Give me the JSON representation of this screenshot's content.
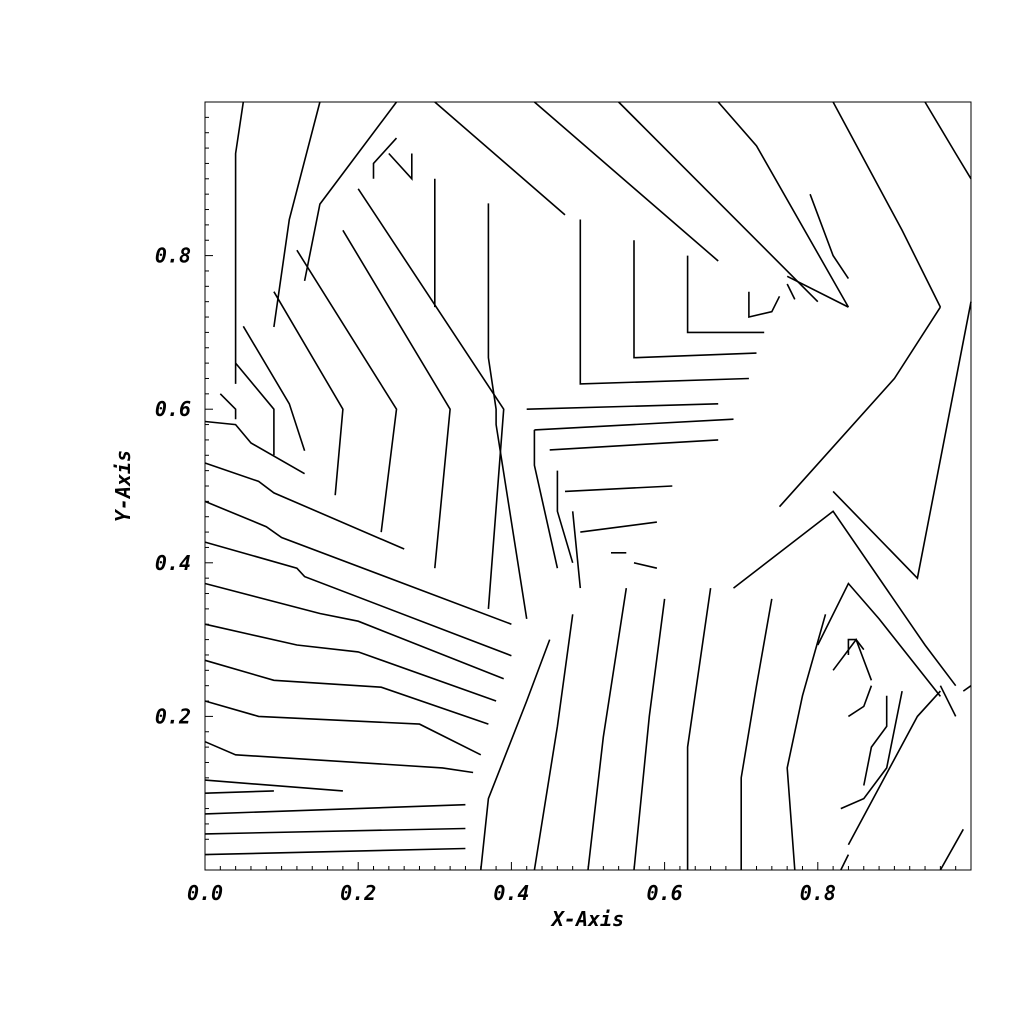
{
  "chart_data": {
    "type": "contour",
    "title": "",
    "xlabel": "X-Axis",
    "ylabel": "Y-Axis",
    "xlim": [
      0.0,
      1.0
    ],
    "ylim": [
      0.0,
      1.0
    ],
    "grid": false,
    "line_color": "#000000",
    "x_ticks": [
      {
        "value": 0.0,
        "label": "0.0"
      },
      {
        "value": 0.2,
        "label": "0.2"
      },
      {
        "value": 0.4,
        "label": "0.4"
      },
      {
        "value": 0.6,
        "label": "0.6"
      },
      {
        "value": 0.8,
        "label": "0.8"
      }
    ],
    "y_ticks": [
      {
        "value": 0.2,
        "label": "0.2"
      },
      {
        "value": 0.4,
        "label": "0.4"
      },
      {
        "value": 0.6,
        "label": "0.6"
      },
      {
        "value": 0.8,
        "label": "0.8"
      }
    ],
    "minor_tick_step": 0.02,
    "contour_lines": [
      [
        [
          0.0,
          0.02
        ],
        [
          0.34,
          0.028
        ]
      ],
      [
        [
          0.0,
          0.047
        ],
        [
          0.34,
          0.054
        ]
      ],
      [
        [
          0.0,
          0.073
        ],
        [
          0.34,
          0.085
        ]
      ],
      [
        [
          0.0,
          0.1
        ],
        [
          0.09,
          0.103
        ]
      ],
      [
        [
          0.0,
          0.117
        ],
        [
          0.18,
          0.103
        ]
      ],
      [
        [
          0.0,
          0.167
        ],
        [
          0.04,
          0.15
        ],
        [
          0.31,
          0.133
        ],
        [
          0.35,
          0.127
        ]
      ],
      [
        [
          0.0,
          0.22
        ],
        [
          0.07,
          0.2
        ],
        [
          0.28,
          0.19
        ],
        [
          0.36,
          0.15
        ]
      ],
      [
        [
          0.0,
          0.273
        ],
        [
          0.09,
          0.247
        ],
        [
          0.23,
          0.238
        ],
        [
          0.37,
          0.19
        ]
      ],
      [
        [
          0.0,
          0.32
        ],
        [
          0.12,
          0.293
        ],
        [
          0.2,
          0.284
        ],
        [
          0.38,
          0.22
        ]
      ],
      [
        [
          0.0,
          0.373
        ],
        [
          0.15,
          0.334
        ],
        [
          0.2,
          0.324
        ],
        [
          0.39,
          0.249
        ]
      ],
      [
        [
          0.0,
          0.427
        ],
        [
          0.12,
          0.393
        ],
        [
          0.13,
          0.382
        ],
        [
          0.4,
          0.279
        ]
      ],
      [
        [
          0.0,
          0.48
        ],
        [
          0.08,
          0.447
        ],
        [
          0.1,
          0.433
        ],
        [
          0.4,
          0.32
        ]
      ],
      [
        [
          0.0,
          0.53
        ],
        [
          0.07,
          0.506
        ],
        [
          0.09,
          0.491
        ],
        [
          0.26,
          0.418
        ]
      ],
      [
        [
          0.0,
          0.584
        ],
        [
          0.04,
          0.58
        ],
        [
          0.06,
          0.556
        ],
        [
          0.13,
          0.516
        ]
      ],
      [
        [
          0.02,
          0.62
        ],
        [
          0.04,
          0.6
        ],
        [
          0.04,
          0.587
        ]
      ],
      [
        [
          0.04,
          0.66
        ],
        [
          0.09,
          0.6
        ],
        [
          0.09,
          0.54
        ]
      ],
      [
        [
          0.05,
          0.708
        ],
        [
          0.11,
          0.607
        ],
        [
          0.13,
          0.546
        ]
      ],
      [
        [
          0.09,
          0.753
        ],
        [
          0.18,
          0.6
        ],
        [
          0.17,
          0.488
        ]
      ],
      [
        [
          0.12,
          0.807
        ],
        [
          0.25,
          0.6
        ],
        [
          0.23,
          0.44
        ]
      ],
      [
        [
          0.18,
          0.833
        ],
        [
          0.32,
          0.6
        ],
        [
          0.3,
          0.393
        ]
      ],
      [
        [
          0.2,
          0.887
        ],
        [
          0.39,
          0.6
        ],
        [
          0.37,
          0.34
        ]
      ],
      [
        [
          0.22,
          0.9
        ],
        [
          0.22,
          0.92
        ],
        [
          0.25,
          0.953
        ]
      ],
      [
        [
          0.24,
          0.933
        ],
        [
          0.27,
          0.9
        ],
        [
          0.27,
          0.933
        ]
      ],
      [
        [
          0.13,
          0.767
        ],
        [
          0.15,
          0.867
        ],
        [
          0.25,
          1.0
        ]
      ],
      [
        [
          0.09,
          0.707
        ],
        [
          0.11,
          0.847
        ],
        [
          0.15,
          1.0
        ]
      ],
      [
        [
          0.04,
          0.633
        ],
        [
          0.04,
          0.7
        ],
        [
          0.04,
          0.933
        ],
        [
          0.05,
          1.0
        ]
      ],
      [
        [
          0.3,
          0.9
        ],
        [
          0.3,
          0.733
        ]
      ],
      [
        [
          0.37,
          0.868
        ],
        [
          0.37,
          0.667
        ],
        [
          0.38,
          0.6
        ],
        [
          0.38,
          0.58
        ],
        [
          0.42,
          0.327
        ]
      ],
      [
        [
          0.3,
          1.0
        ],
        [
          0.47,
          0.853
        ]
      ],
      [
        [
          0.49,
          0.847
        ],
        [
          0.49,
          0.633
        ],
        [
          0.71,
          0.64
        ]
      ],
      [
        [
          0.56,
          0.82
        ],
        [
          0.56,
          0.667
        ],
        [
          0.72,
          0.673
        ]
      ],
      [
        [
          0.63,
          0.8
        ],
        [
          0.63,
          0.7
        ],
        [
          0.73,
          0.7
        ]
      ],
      [
        [
          0.43,
          1.0
        ],
        [
          0.67,
          0.793
        ]
      ],
      [
        [
          0.54,
          1.0
        ],
        [
          0.8,
          0.74
        ]
      ],
      [
        [
          0.71,
          0.753
        ],
        [
          0.71,
          0.72
        ],
        [
          0.74,
          0.727
        ],
        [
          0.75,
          0.747
        ]
      ],
      [
        [
          0.76,
          0.763
        ],
        [
          0.77,
          0.743
        ]
      ],
      [
        [
          0.67,
          1.0
        ],
        [
          0.72,
          0.943
        ],
        [
          0.84,
          0.733
        ]
      ],
      [
        [
          0.79,
          0.88
        ],
        [
          0.82,
          0.8
        ],
        [
          0.84,
          0.77
        ]
      ],
      [
        [
          0.76,
          0.773
        ],
        [
          0.84,
          0.733
        ]
      ],
      [
        [
          0.82,
          1.0
        ],
        [
          0.91,
          0.833
        ],
        [
          0.96,
          0.733
        ]
      ],
      [
        [
          0.94,
          1.0
        ],
        [
          0.98,
          0.933
        ],
        [
          1.0,
          0.9
        ]
      ],
      [
        [
          0.42,
          0.6
        ],
        [
          0.67,
          0.607
        ]
      ],
      [
        [
          0.43,
          0.573
        ],
        [
          0.43,
          0.527
        ],
        [
          0.46,
          0.393
        ]
      ],
      [
        [
          0.43,
          0.573
        ],
        [
          0.69,
          0.587
        ]
      ],
      [
        [
          0.45,
          0.547
        ],
        [
          0.67,
          0.56
        ]
      ],
      [
        [
          0.46,
          0.52
        ],
        [
          0.46,
          0.467
        ],
        [
          0.48,
          0.4
        ]
      ],
      [
        [
          0.47,
          0.493
        ],
        [
          0.61,
          0.5
        ]
      ],
      [
        [
          0.48,
          0.467
        ],
        [
          0.49,
          0.367
        ]
      ],
      [
        [
          0.49,
          0.44
        ],
        [
          0.59,
          0.453
        ]
      ],
      [
        [
          0.53,
          0.413
        ],
        [
          0.55,
          0.413
        ]
      ],
      [
        [
          0.56,
          0.4
        ],
        [
          0.59,
          0.393
        ]
      ],
      [
        [
          0.36,
          0.0
        ],
        [
          0.37,
          0.093
        ],
        [
          0.42,
          0.22
        ],
        [
          0.45,
          0.3
        ]
      ],
      [
        [
          0.43,
          0.0
        ],
        [
          0.46,
          0.187
        ],
        [
          0.48,
          0.333
        ]
      ],
      [
        [
          0.5,
          0.0
        ],
        [
          0.52,
          0.173
        ],
        [
          0.55,
          0.367
        ]
      ],
      [
        [
          0.56,
          0.0
        ],
        [
          0.58,
          0.2
        ],
        [
          0.6,
          0.353
        ]
      ],
      [
        [
          0.63,
          0.0
        ],
        [
          0.63,
          0.16
        ],
        [
          0.66,
          0.367
        ]
      ],
      [
        [
          0.7,
          0.0
        ],
        [
          0.7,
          0.12
        ],
        [
          0.72,
          0.24
        ],
        [
          0.74,
          0.353
        ]
      ],
      [
        [
          0.77,
          0.0
        ],
        [
          0.76,
          0.133
        ],
        [
          0.78,
          0.227
        ],
        [
          0.81,
          0.333
        ]
      ],
      [
        [
          0.83,
          0.0
        ],
        [
          0.84,
          0.02
        ]
      ],
      [
        [
          0.84,
          0.033
        ],
        [
          0.93,
          0.2
        ],
        [
          0.96,
          0.233
        ]
      ],
      [
        [
          0.83,
          0.08
        ],
        [
          0.86,
          0.093
        ],
        [
          0.89,
          0.133
        ],
        [
          0.91,
          0.233
        ]
      ],
      [
        [
          0.86,
          0.11
        ],
        [
          0.87,
          0.16
        ],
        [
          0.89,
          0.187
        ],
        [
          0.89,
          0.227
        ]
      ],
      [
        [
          0.84,
          0.2
        ],
        [
          0.86,
          0.213
        ],
        [
          0.87,
          0.24
        ]
      ],
      [
        [
          0.84,
          0.28
        ],
        [
          0.84,
          0.3
        ],
        [
          0.85,
          0.3
        ],
        [
          0.86,
          0.287
        ]
      ],
      [
        [
          0.82,
          0.26
        ],
        [
          0.85,
          0.3
        ],
        [
          0.87,
          0.247
        ]
      ],
      [
        [
          0.8,
          0.293
        ],
        [
          0.84,
          0.373
        ],
        [
          0.88,
          0.327
        ],
        [
          0.96,
          0.226
        ]
      ],
      [
        [
          0.69,
          0.367
        ],
        [
          0.82,
          0.467
        ],
        [
          0.94,
          0.293
        ],
        [
          0.98,
          0.24
        ]
      ],
      [
        [
          0.75,
          0.473
        ],
        [
          0.9,
          0.64
        ],
        [
          0.96,
          0.733
        ]
      ],
      [
        [
          0.82,
          0.493
        ],
        [
          0.93,
          0.38
        ],
        [
          1.0,
          0.74
        ]
      ],
      [
        [
          0.96,
          0.24
        ],
        [
          0.98,
          0.2
        ]
      ],
      [
        [
          0.99,
          0.233
        ],
        [
          1.0,
          0.24
        ]
      ],
      [
        [
          0.96,
          0.0
        ],
        [
          0.99,
          0.053
        ]
      ]
    ]
  }
}
